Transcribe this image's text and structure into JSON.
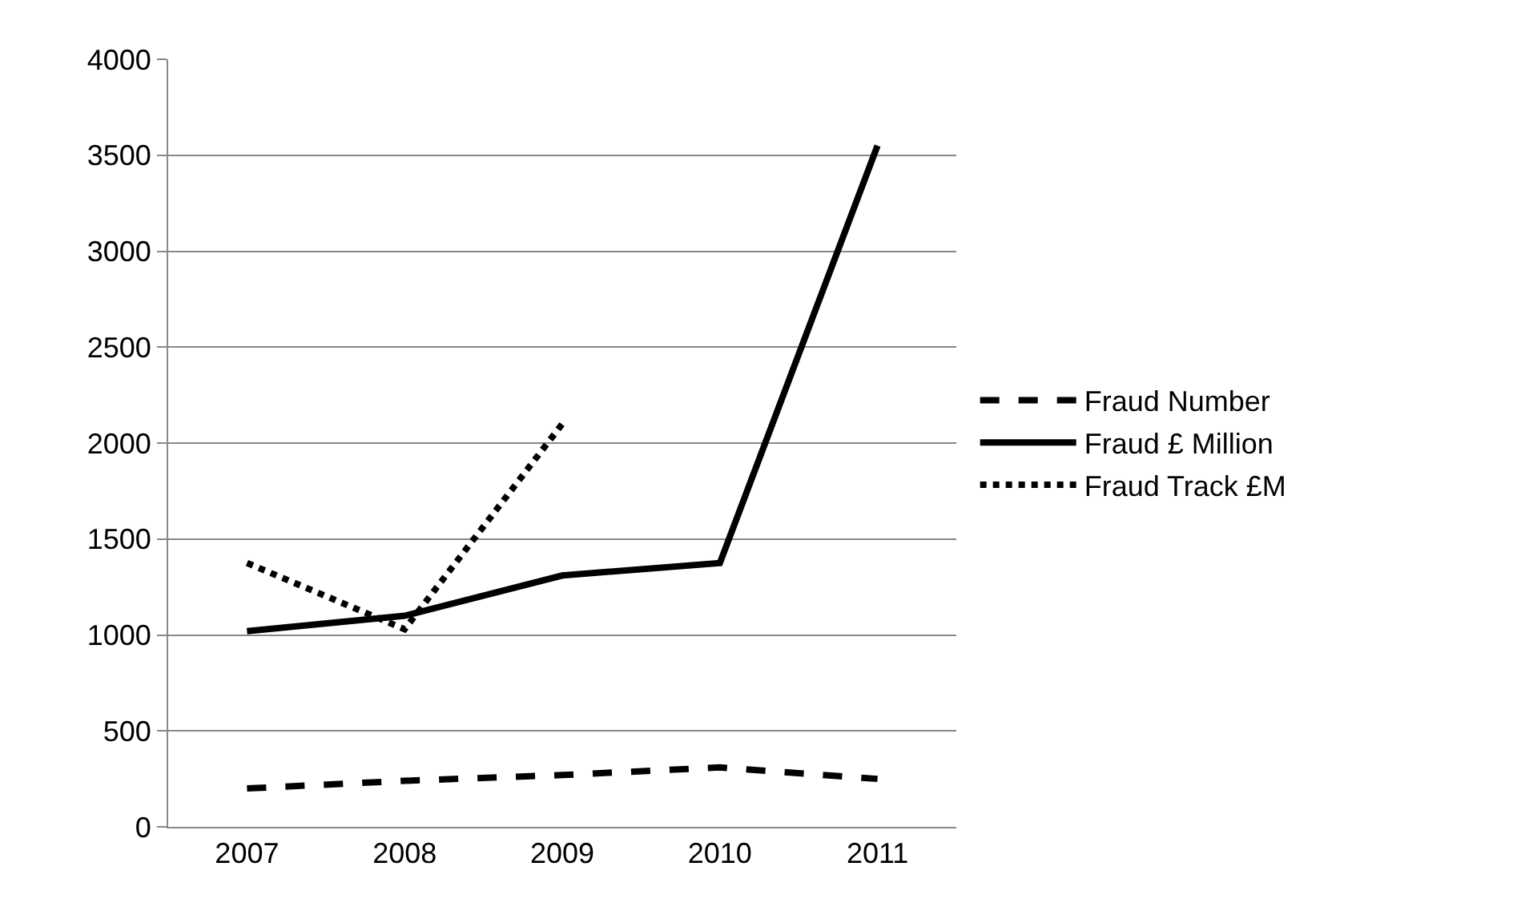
{
  "chart_data": {
    "type": "line",
    "categories": [
      "2007",
      "2008",
      "2009",
      "2010",
      "2011"
    ],
    "series": [
      {
        "name": "Fraud Number",
        "color": "#000000",
        "line_style": "dashed",
        "values": [
          200,
          240,
          270,
          310,
          250
        ]
      },
      {
        "name": "Fraud £ Million",
        "color": "#000000",
        "line_style": "solid",
        "values": [
          1020,
          1100,
          1310,
          1375,
          3550
        ]
      },
      {
        "name": "Fraud Track £M",
        "color": "#000000",
        "line_style": "dotted",
        "values": [
          1375,
          1030,
          2100,
          null,
          null
        ]
      }
    ],
    "ylim": [
      0,
      4000
    ],
    "yticks": [
      0,
      500,
      1000,
      1500,
      2000,
      2500,
      3000,
      3500,
      4000
    ],
    "grid": "y",
    "legend": "right",
    "marker": "none"
  }
}
